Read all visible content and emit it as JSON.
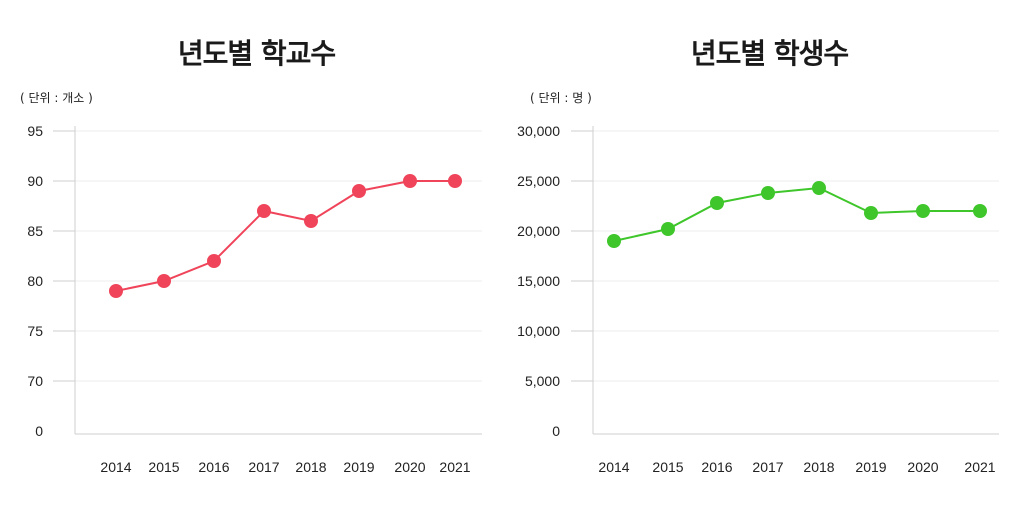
{
  "chart_data": [
    {
      "type": "line",
      "title": "년도별 학교수",
      "unit": "( 단위 : 개소 )",
      "x": [
        "2014",
        "2015",
        "2016",
        "2017",
        "2018",
        "2019",
        "2020",
        "2021"
      ],
      "y_ticks": [
        "95",
        "90",
        "85",
        "80",
        "75",
        "70",
        "0"
      ],
      "series": [
        {
          "values": [
            79,
            80,
            82,
            87,
            86,
            89,
            90,
            90
          ]
        }
      ],
      "color": "#f0445a",
      "grid": true
    },
    {
      "type": "line",
      "title": "년도별 학생수",
      "unit": "( 단위 : 명 )",
      "x": [
        "2014",
        "2015",
        "2016",
        "2017",
        "2018",
        "2019",
        "2020",
        "2021"
      ],
      "y_ticks": [
        "30,000",
        "25,000",
        "20,000",
        "15,000",
        "10,000",
        "5,000",
        "0"
      ],
      "ylim": [
        0,
        30000
      ],
      "series": [
        {
          "values": [
            19000,
            20200,
            22800,
            23800,
            24300,
            21800,
            22000,
            22000
          ]
        }
      ],
      "color": "#3ec62a",
      "grid": true
    }
  ]
}
